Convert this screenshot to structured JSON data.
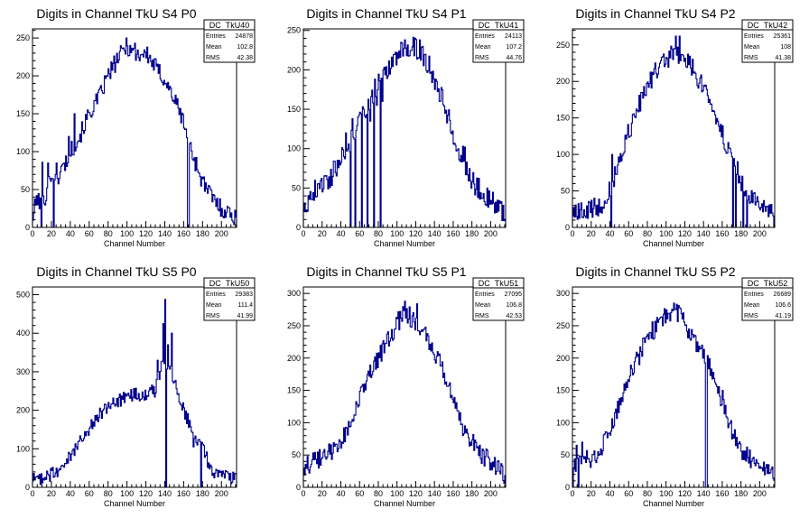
{
  "colors": {
    "line": "#00008b",
    "frame": "#000000",
    "background": "#ffffff"
  },
  "chart_data": [
    {
      "type": "histogram",
      "title": "Digits in Channel TkU S4 P0",
      "xlabel": "Channel Number",
      "xlim": [
        0,
        216
      ],
      "ylim": [
        0,
        262
      ],
      "xticks": [
        0,
        20,
        40,
        60,
        80,
        100,
        120,
        140,
        160,
        180,
        200
      ],
      "yticks": [
        0,
        50,
        100,
        150,
        200,
        250
      ],
      "stats": {
        "name": "DC_TkU40",
        "entries": "24878",
        "mean": "102.8",
        "rms": "42.38"
      },
      "anchors": [
        [
          0,
          12
        ],
        [
          5,
          40
        ],
        [
          10,
          25
        ],
        [
          15,
          48
        ],
        [
          20,
          70
        ],
        [
          25,
          60
        ],
        [
          30,
          75
        ],
        [
          35,
          85
        ],
        [
          40,
          100
        ],
        [
          50,
          120
        ],
        [
          60,
          150
        ],
        [
          70,
          170
        ],
        [
          80,
          200
        ],
        [
          90,
          222
        ],
        [
          100,
          240
        ],
        [
          110,
          228
        ],
        [
          120,
          230
        ],
        [
          130,
          212
        ],
        [
          140,
          195
        ],
        [
          150,
          170
        ],
        [
          160,
          140
        ],
        [
          170,
          95
        ],
        [
          180,
          60
        ],
        [
          190,
          40
        ],
        [
          200,
          25
        ],
        [
          210,
          18
        ],
        [
          216,
          12
        ]
      ],
      "spikes": [
        [
          9,
          0
        ],
        [
          10,
          86
        ],
        [
          16,
          85
        ],
        [
          22,
          0
        ],
        [
          25,
          85
        ],
        [
          38,
          120
        ],
        [
          44,
          150
        ],
        [
          99,
          250
        ],
        [
          108,
          243
        ],
        [
          164,
          0
        ],
        [
          165,
          0
        ]
      ],
      "noise": 12,
      "seed": 101
    },
    {
      "type": "histogram",
      "title": "Digits in Channel TkU S4 P1",
      "xlabel": "Channel Number",
      "xlim": [
        0,
        216
      ],
      "ylim": [
        0,
        252
      ],
      "xticks": [
        0,
        20,
        40,
        60,
        80,
        100,
        120,
        140,
        160,
        180,
        200
      ],
      "yticks": [
        0,
        50,
        100,
        150,
        200,
        250
      ],
      "stats": {
        "name": "DC_TkU41",
        "entries": "24113",
        "mean": "107.2",
        "rms": "44.76"
      },
      "anchors": [
        [
          0,
          25
        ],
        [
          10,
          45
        ],
        [
          20,
          55
        ],
        [
          30,
          65
        ],
        [
          40,
          90
        ],
        [
          50,
          110
        ],
        [
          60,
          135
        ],
        [
          70,
          160
        ],
        [
          80,
          185
        ],
        [
          90,
          200
        ],
        [
          100,
          220
        ],
        [
          110,
          230
        ],
        [
          120,
          228
        ],
        [
          130,
          215
        ],
        [
          140,
          190
        ],
        [
          150,
          160
        ],
        [
          160,
          120
        ],
        [
          170,
          80
        ],
        [
          180,
          60
        ],
        [
          190,
          45
        ],
        [
          200,
          35
        ],
        [
          210,
          25
        ],
        [
          216,
          15
        ]
      ],
      "spikes": [
        [
          50,
          0
        ],
        [
          52,
          138
        ],
        [
          55,
          0
        ],
        [
          58,
          140
        ],
        [
          62,
          0
        ],
        [
          64,
          150
        ],
        [
          68,
          0
        ],
        [
          71,
          135
        ],
        [
          75,
          0
        ],
        [
          78,
          155
        ],
        [
          82,
          0
        ],
        [
          84,
          160
        ],
        [
          45,
          120
        ],
        [
          108,
          238
        ],
        [
          124,
          238
        ],
        [
          170,
          103
        ],
        [
          172,
          102
        ]
      ],
      "noise": 14,
      "seed": 202
    },
    {
      "type": "histogram",
      "title": "Digits in Channel TkU S4 P2",
      "xlabel": "Channel Number",
      "xlim": [
        0,
        216
      ],
      "ylim": [
        0,
        272
      ],
      "xticks": [
        0,
        20,
        40,
        60,
        80,
        100,
        120,
        140,
        160,
        180,
        200
      ],
      "yticks": [
        0,
        50,
        100,
        150,
        200,
        250
      ],
      "stats": {
        "name": "DC_TkU42",
        "entries": "25361",
        "mean": "108",
        "rms": "41.38"
      },
      "anchors": [
        [
          0,
          20
        ],
        [
          10,
          20
        ],
        [
          20,
          25
        ],
        [
          30,
          30
        ],
        [
          40,
          50
        ],
        [
          50,
          90
        ],
        [
          60,
          130
        ],
        [
          70,
          165
        ],
        [
          80,
          190
        ],
        [
          90,
          215
        ],
        [
          100,
          230
        ],
        [
          110,
          240
        ],
        [
          120,
          232
        ],
        [
          130,
          215
        ],
        [
          140,
          190
        ],
        [
          150,
          165
        ],
        [
          160,
          130
        ],
        [
          170,
          90
        ],
        [
          180,
          60
        ],
        [
          190,
          45
        ],
        [
          200,
          25
        ],
        [
          210,
          20
        ],
        [
          216,
          15
        ]
      ],
      "spikes": [
        [
          41,
          0
        ],
        [
          42,
          100
        ],
        [
          110,
          262
        ],
        [
          114,
          262
        ],
        [
          171,
          0
        ],
        [
          174,
          0
        ],
        [
          176,
          90
        ],
        [
          182,
          0
        ],
        [
          186,
          0
        ]
      ],
      "noise": 14,
      "seed": 303
    },
    {
      "type": "histogram",
      "title": "Digits in Channel TkU S5 P0",
      "xlabel": "Channel Number",
      "xlim": [
        0,
        216
      ],
      "ylim": [
        0,
        520
      ],
      "xticks": [
        0,
        20,
        40,
        60,
        80,
        100,
        120,
        140,
        160,
        180,
        200
      ],
      "yticks": [
        0,
        100,
        200,
        300,
        400,
        500
      ],
      "stats": {
        "name": "DC_TkU50",
        "entries": "29383",
        "mean": "111.4",
        "rms": "41.99"
      },
      "anchors": [
        [
          0,
          20
        ],
        [
          10,
          25
        ],
        [
          20,
          35
        ],
        [
          30,
          45
        ],
        [
          40,
          80
        ],
        [
          50,
          120
        ],
        [
          60,
          150
        ],
        [
          70,
          185
        ],
        [
          80,
          210
        ],
        [
          90,
          225
        ],
        [
          100,
          235
        ],
        [
          110,
          240
        ],
        [
          120,
          245
        ],
        [
          130,
          250
        ],
        [
          135,
          300
        ],
        [
          140,
          330
        ],
        [
          150,
          280
        ],
        [
          160,
          200
        ],
        [
          170,
          150
        ],
        [
          180,
          100
        ],
        [
          190,
          45
        ],
        [
          200,
          30
        ],
        [
          210,
          25
        ],
        [
          216,
          25
        ]
      ],
      "spikes": [
        [
          120,
          228
        ],
        [
          132,
          330
        ],
        [
          138,
          425
        ],
        [
          140,
          488
        ],
        [
          141,
          0
        ],
        [
          143,
          370
        ],
        [
          147,
          400
        ],
        [
          170,
          105
        ],
        [
          178,
          0
        ],
        [
          182,
          78
        ]
      ],
      "noise": 18,
      "seed": 404
    },
    {
      "type": "histogram",
      "title": "Digits in Channel TkU S5 P1",
      "xlabel": "Channel Number",
      "xlim": [
        0,
        216
      ],
      "ylim": [
        0,
        310
      ],
      "xticks": [
        0,
        20,
        40,
        60,
        80,
        100,
        120,
        140,
        160,
        180,
        200
      ],
      "yticks": [
        0,
        50,
        100,
        150,
        200,
        250,
        300
      ],
      "stats": {
        "name": "DC_TkU51",
        "entries": "27095",
        "mean": "106.8",
        "rms": "42.53"
      },
      "anchors": [
        [
          0,
          30
        ],
        [
          10,
          40
        ],
        [
          20,
          45
        ],
        [
          30,
          55
        ],
        [
          40,
          70
        ],
        [
          50,
          100
        ],
        [
          60,
          135
        ],
        [
          70,
          170
        ],
        [
          80,
          200
        ],
        [
          90,
          225
        ],
        [
          100,
          255
        ],
        [
          110,
          270
        ],
        [
          120,
          255
        ],
        [
          130,
          235
        ],
        [
          140,
          210
        ],
        [
          150,
          180
        ],
        [
          160,
          130
        ],
        [
          170,
          95
        ],
        [
          180,
          70
        ],
        [
          190,
          50
        ],
        [
          200,
          40
        ],
        [
          210,
          30
        ],
        [
          216,
          15
        ]
      ],
      "spikes": [
        [
          108,
          288
        ],
        [
          121,
          284
        ],
        [
          170,
          80
        ],
        [
          172,
          95
        ],
        [
          174,
          90
        ]
      ],
      "noise": 15,
      "seed": 505
    },
    {
      "type": "histogram",
      "title": "Digits in Channel TkU S5 P2",
      "xlabel": "Channel Number",
      "xlim": [
        0,
        216
      ],
      "ylim": [
        0,
        310
      ],
      "xticks": [
        0,
        20,
        40,
        60,
        80,
        100,
        120,
        140,
        160,
        180,
        200
      ],
      "yticks": [
        0,
        50,
        100,
        150,
        200,
        250,
        300
      ],
      "stats": {
        "name": "DC_TkU52",
        "entries": "26689",
        "mean": "106.6",
        "rms": "41.19"
      },
      "anchors": [
        [
          0,
          35
        ],
        [
          10,
          40
        ],
        [
          20,
          45
        ],
        [
          30,
          60
        ],
        [
          40,
          90
        ],
        [
          50,
          130
        ],
        [
          60,
          170
        ],
        [
          70,
          200
        ],
        [
          80,
          230
        ],
        [
          90,
          250
        ],
        [
          100,
          268
        ],
        [
          110,
          275
        ],
        [
          120,
          255
        ],
        [
          130,
          230
        ],
        [
          140,
          205
        ],
        [
          150,
          180
        ],
        [
          160,
          130
        ],
        [
          170,
          90
        ],
        [
          180,
          60
        ],
        [
          190,
          45
        ],
        [
          200,
          35
        ],
        [
          210,
          25
        ],
        [
          216,
          15
        ]
      ],
      "spikes": [
        [
          0,
          0
        ],
        [
          4,
          65
        ],
        [
          6,
          0
        ],
        [
          10,
          70
        ],
        [
          108,
          285
        ],
        [
          110,
          275
        ],
        [
          118,
          270
        ],
        [
          142,
          0
        ],
        [
          143,
          0
        ],
        [
          160,
          150
        ]
      ],
      "noise": 15,
      "seed": 606
    }
  ]
}
